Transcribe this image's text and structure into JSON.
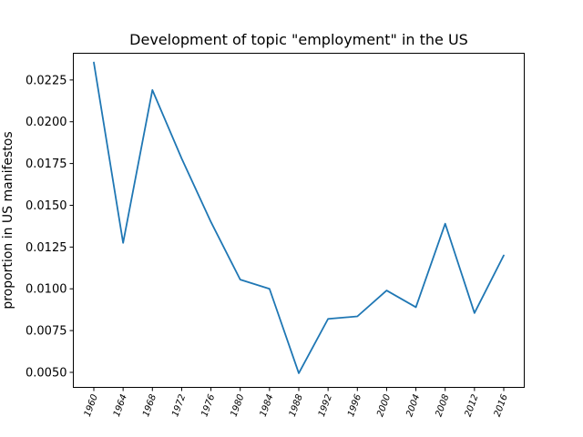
{
  "chart_data": {
    "type": "line",
    "title": "Development of topic \"employment\" in the US",
    "xlabel": "",
    "ylabel": "proportion in US manifestos",
    "x": [
      "1960",
      "1964",
      "1968",
      "1972",
      "1976",
      "1980",
      "1984",
      "1988",
      "1992",
      "1996",
      "2000",
      "2004",
      "2008",
      "2012",
      "2016"
    ],
    "series": [
      {
        "values": [
          0.02355,
          0.01275,
          0.0219,
          0.0178,
          0.014,
          0.01055,
          0.01,
          0.00495,
          0.0082,
          0.00835,
          0.0099,
          0.0089,
          0.0139,
          0.00855,
          0.012
        ]
      }
    ],
    "ylim": [
      0.0041,
      0.0241
    ],
    "yticks": [
      "0.0050",
      "0.0075",
      "0.0100",
      "0.0125",
      "0.0150",
      "0.0175",
      "0.0200",
      "0.0225"
    ],
    "grid": false,
    "colors": {
      "line": "#1f77b4"
    }
  }
}
